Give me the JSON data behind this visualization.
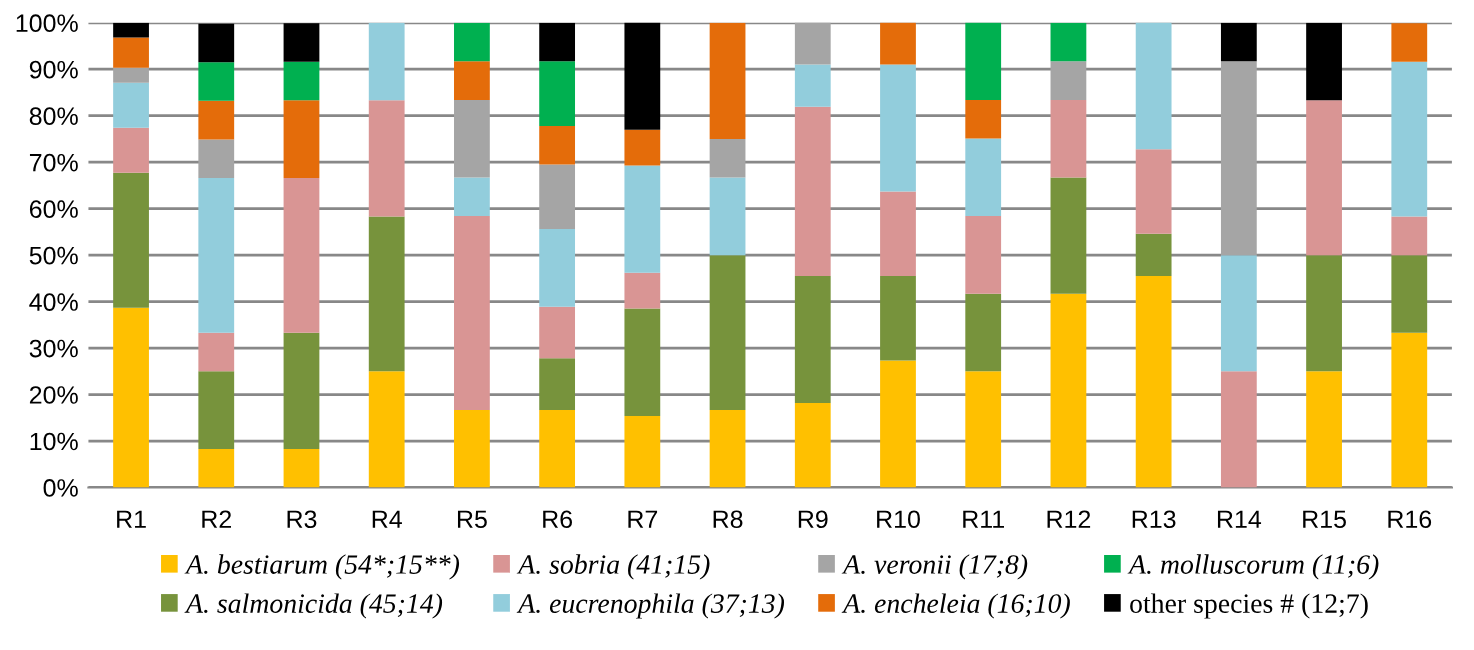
{
  "chart_data": {
    "type": "bar",
    "stacked": true,
    "categories": [
      "R1",
      "R2",
      "R3",
      "R4",
      "R5",
      "R6",
      "R7",
      "R8",
      "R9",
      "R10",
      "R11",
      "R12",
      "R13",
      "R14",
      "R15",
      "R16"
    ],
    "series": [
      {
        "name": "A. bestiarum (54*;15**)",
        "color": "#ffc000",
        "values": [
          38.7,
          8.3,
          8.3,
          25,
          16.7,
          16.7,
          15.4,
          16.7,
          18.2,
          27.3,
          25,
          41.7,
          45.5,
          0,
          25,
          33.3
        ]
      },
      {
        "name": "A. salmonicida (45;14)",
        "color": "#77933c",
        "values": [
          29.0,
          16.7,
          25,
          33.3,
          0,
          11.1,
          23.1,
          33.3,
          27.3,
          18.2,
          16.7,
          25,
          9.1,
          0,
          25,
          16.7
        ]
      },
      {
        "name": "A. sobria (41;15)",
        "color": "#d99594",
        "values": [
          9.7,
          8.3,
          33.3,
          25,
          41.7,
          11.1,
          7.7,
          0,
          36.4,
          18.2,
          16.7,
          16.7,
          18.2,
          25,
          33.3,
          8.3
        ]
      },
      {
        "name": "A. eucrenophila (37;13)",
        "color": "#92cddc",
        "values": [
          9.7,
          33.3,
          0,
          16.7,
          8.3,
          16.7,
          23.1,
          16.7,
          9.1,
          27.3,
          16.7,
          0,
          27.3,
          25,
          0,
          33.3
        ]
      },
      {
        "name": "A. veronii (17;8)",
        "color": "#a5a5a5",
        "values": [
          3.2,
          8.3,
          0,
          0,
          16.7,
          13.9,
          0,
          8.3,
          9.1,
          0,
          0,
          8.3,
          0,
          41.7,
          0,
          0
        ]
      },
      {
        "name": "A. encheleia (16;10)",
        "color": "#e46c0a",
        "values": [
          6.5,
          8.3,
          16.7,
          0,
          8.3,
          8.3,
          7.7,
          25,
          0,
          9.1,
          8.3,
          0,
          0,
          0,
          0,
          8.3
        ]
      },
      {
        "name": "A. molluscorum (11;6)",
        "color": "#00b050",
        "values": [
          0,
          8.3,
          8.3,
          0,
          8.3,
          13.9,
          0,
          0,
          0,
          0,
          16.7,
          8.3,
          0,
          0,
          0,
          0
        ]
      },
      {
        "name": "other species # (12;7)",
        "color": "#000000",
        "values": [
          3.2,
          8.3,
          8.3,
          0,
          0,
          8.3,
          23.1,
          0,
          0,
          0,
          0,
          0,
          0,
          8.3,
          16.7,
          0
        ]
      }
    ],
    "ylim": [
      0,
      100
    ],
    "yticks": [
      {
        "value": 0,
        "label": "0%"
      },
      {
        "value": 10,
        "label": "10%"
      },
      {
        "value": 20,
        "label": "20%"
      },
      {
        "value": 30,
        "label": "30%"
      },
      {
        "value": 40,
        "label": "40%"
      },
      {
        "value": 50,
        "label": "50%"
      },
      {
        "value": 60,
        "label": "60%"
      },
      {
        "value": 70,
        "label": "70%"
      },
      {
        "value": 80,
        "label": "80%"
      },
      {
        "value": 90,
        "label": "90%"
      },
      {
        "value": 100,
        "label": "100%"
      }
    ],
    "grid": "y",
    "legend": "bottom"
  }
}
